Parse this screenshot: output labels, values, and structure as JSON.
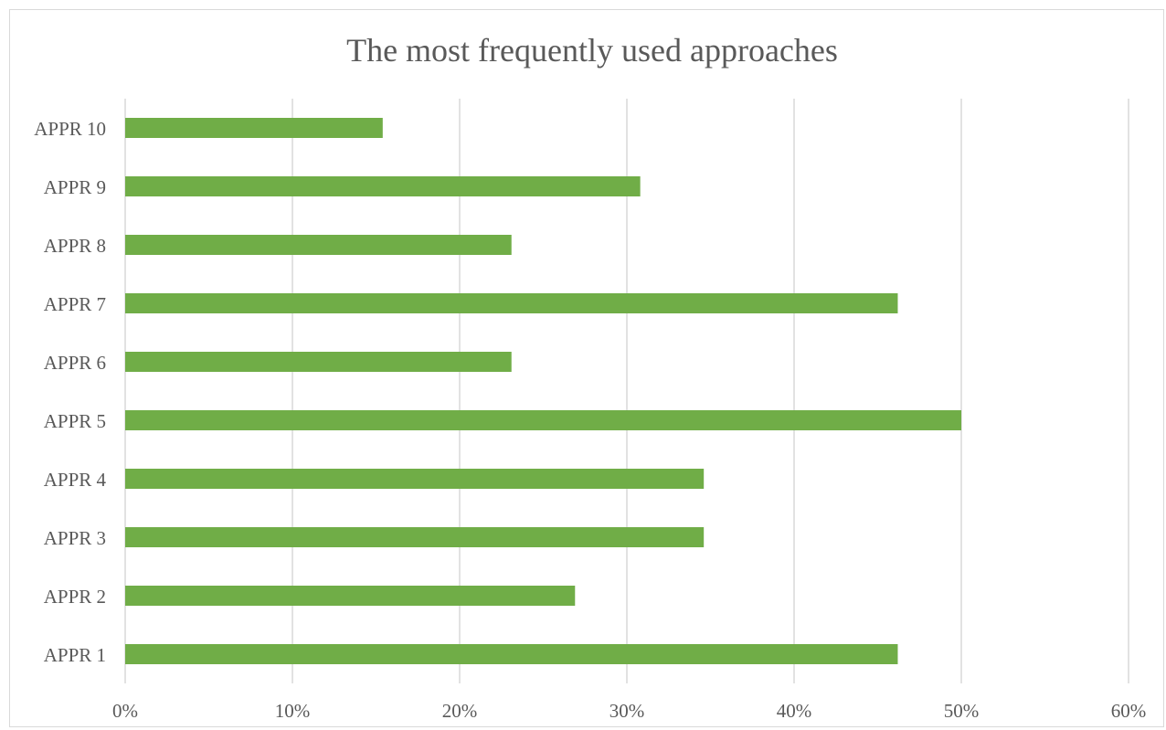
{
  "chart_data": {
    "type": "bar",
    "orientation": "horizontal",
    "title": "The most frequently used approaches",
    "xlabel": "",
    "ylabel": "",
    "categories": [
      "APPR 1",
      "APPR 2",
      "APPR 3",
      "APPR 4",
      "APPR 5",
      "APPR 6",
      "APPR 7",
      "APPR 8",
      "APPR 9",
      "APPR 10"
    ],
    "values": [
      0.462,
      0.269,
      0.346,
      0.346,
      0.5,
      0.231,
      0.462,
      0.231,
      0.308,
      0.154
    ],
    "xlim": [
      0,
      0.6
    ],
    "x_ticks": [
      "0%",
      "10%",
      "20%",
      "30%",
      "40%",
      "50%",
      "60%"
    ],
    "grid": "vertical",
    "legend": "none",
    "bar_color": "#70ad47"
  }
}
